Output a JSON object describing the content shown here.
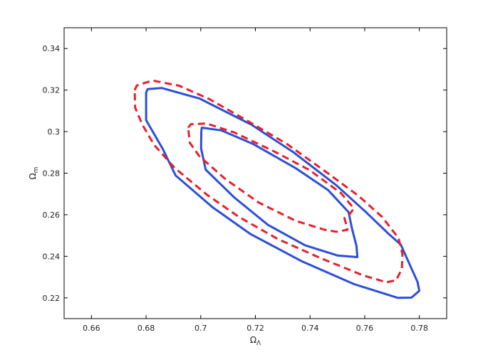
{
  "chart_data": {
    "type": "line",
    "title": "",
    "xlabel": "Ω",
    "xlabel_sub": "Λ",
    "ylabel": "Ω",
    "ylabel_sub": "m",
    "xlim": [
      0.65,
      0.79
    ],
    "ylim": [
      0.21,
      0.35
    ],
    "x_ticks": [
      0.66,
      0.68,
      0.7,
      0.72,
      0.74,
      0.76,
      0.78
    ],
    "x_tick_labels": [
      "0.66",
      "0.68",
      "0.7",
      "0.72",
      "0.74",
      "0.76",
      "0.78"
    ],
    "y_ticks": [
      0.22,
      0.24,
      0.26,
      0.28,
      0.3,
      0.32,
      0.34
    ],
    "y_tick_labels": [
      "0.22",
      "0.24",
      "0.26",
      "0.28",
      "0.3",
      "0.32",
      "0.34"
    ],
    "grid": false,
    "legend": null,
    "series": [
      {
        "id": "solid-inner",
        "color": "#2b4fd6",
        "style": "solid",
        "points": [
          [
            0.7002,
            0.3003
          ],
          [
            0.7004,
            0.3019
          ],
          [
            0.7075,
            0.3006
          ],
          [
            0.7194,
            0.2939
          ],
          [
            0.735,
            0.2822
          ],
          [
            0.7466,
            0.2719
          ],
          [
            0.7541,
            0.2612
          ],
          [
            0.7554,
            0.253
          ],
          [
            0.757,
            0.2449
          ],
          [
            0.7573,
            0.2396
          ],
          [
            0.75,
            0.2404
          ],
          [
            0.7382,
            0.2453
          ],
          [
            0.7246,
            0.2551
          ],
          [
            0.7121,
            0.2685
          ],
          [
            0.7018,
            0.2817
          ],
          [
            0.7001,
            0.292
          ],
          [
            0.7002,
            0.3003
          ]
        ]
      },
      {
        "id": "solid-outer",
        "color": "#2b4fd6",
        "style": "solid",
        "points": [
          [
            0.68,
            0.3188
          ],
          [
            0.6806,
            0.3205
          ],
          [
            0.6857,
            0.321
          ],
          [
            0.6996,
            0.3159
          ],
          [
            0.7186,
            0.3033
          ],
          [
            0.7339,
            0.2901
          ],
          [
            0.7495,
            0.2743
          ],
          [
            0.7604,
            0.2613
          ],
          [
            0.7684,
            0.2512
          ],
          [
            0.7732,
            0.2456
          ],
          [
            0.7793,
            0.2277
          ],
          [
            0.78,
            0.2234
          ],
          [
            0.7771,
            0.2201
          ],
          [
            0.7721,
            0.22
          ],
          [
            0.7561,
            0.2266
          ],
          [
            0.737,
            0.2376
          ],
          [
            0.7182,
            0.2507
          ],
          [
            0.7043,
            0.2636
          ],
          [
            0.6908,
            0.2789
          ],
          [
            0.686,
            0.2919
          ],
          [
            0.68,
            0.3055
          ],
          [
            0.68,
            0.3188
          ]
        ]
      },
      {
        "id": "dashed-inner",
        "color": "#e8202a",
        "style": "dashed",
        "points": [
          [
            0.6954,
            0.3019
          ],
          [
            0.6964,
            0.3036
          ],
          [
            0.7022,
            0.3039
          ],
          [
            0.7122,
            0.2996
          ],
          [
            0.7268,
            0.2905
          ],
          [
            0.7398,
            0.2815
          ],
          [
            0.7513,
            0.2704
          ],
          [
            0.756,
            0.2631
          ],
          [
            0.7545,
            0.2602
          ],
          [
            0.7526,
            0.2584
          ],
          [
            0.7537,
            0.2528
          ],
          [
            0.7497,
            0.2518
          ],
          [
            0.7453,
            0.2528
          ],
          [
            0.7347,
            0.2571
          ],
          [
            0.7213,
            0.2658
          ],
          [
            0.709,
            0.2772
          ],
          [
            0.6994,
            0.2883
          ],
          [
            0.696,
            0.2947
          ],
          [
            0.6954,
            0.3019
          ]
        ]
      },
      {
        "id": "dashed-outer",
        "color": "#e8202a",
        "style": "dashed",
        "points": [
          [
            0.6758,
            0.3199
          ],
          [
            0.6766,
            0.3222
          ],
          [
            0.6823,
            0.3246
          ],
          [
            0.6921,
            0.3221
          ],
          [
            0.7032,
            0.3156
          ],
          [
            0.7158,
            0.3062
          ],
          [
            0.7316,
            0.294
          ],
          [
            0.7465,
            0.28
          ],
          [
            0.7578,
            0.269
          ],
          [
            0.7663,
            0.259
          ],
          [
            0.7724,
            0.2487
          ],
          [
            0.7738,
            0.2409
          ],
          [
            0.7736,
            0.2339
          ],
          [
            0.7715,
            0.2285
          ],
          [
            0.768,
            0.2275
          ],
          [
            0.7596,
            0.2307
          ],
          [
            0.7437,
            0.2392
          ],
          [
            0.7282,
            0.2483
          ],
          [
            0.7139,
            0.259
          ],
          [
            0.7022,
            0.2697
          ],
          [
            0.6904,
            0.2826
          ],
          [
            0.683,
            0.2935
          ],
          [
            0.6786,
            0.3034
          ],
          [
            0.676,
            0.3116
          ],
          [
            0.6758,
            0.3199
          ]
        ]
      }
    ]
  }
}
